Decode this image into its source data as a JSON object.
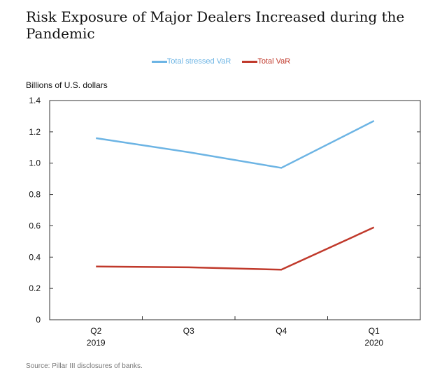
{
  "title": "Risk Exposure of Major Dealers Increased during the Pandemic",
  "units_label": "Billions of U.S. dollars",
  "source": "Source: Pillar III disclosures of banks.",
  "chart_data": {
    "type": "line",
    "categories": [
      [
        "Q2",
        "2019"
      ],
      [
        "Q3",
        ""
      ],
      [
        "Q4",
        ""
      ],
      [
        "Q1",
        "2020"
      ]
    ],
    "series": [
      {
        "name": "Total stressed VaR",
        "color": "#6cb4e4",
        "values": [
          1.16,
          1.07,
          0.97,
          1.27
        ]
      },
      {
        "name": "Total VaR",
        "color": "#c0392b",
        "values": [
          0.34,
          0.335,
          0.32,
          0.59
        ]
      }
    ],
    "ylim": [
      0,
      1.4
    ],
    "yticks": [
      "0",
      "0.2",
      "0.4",
      "0.6",
      "0.8",
      "1.0",
      "1.2",
      "1.4"
    ],
    "legend_position": "top-center",
    "grid": false
  }
}
